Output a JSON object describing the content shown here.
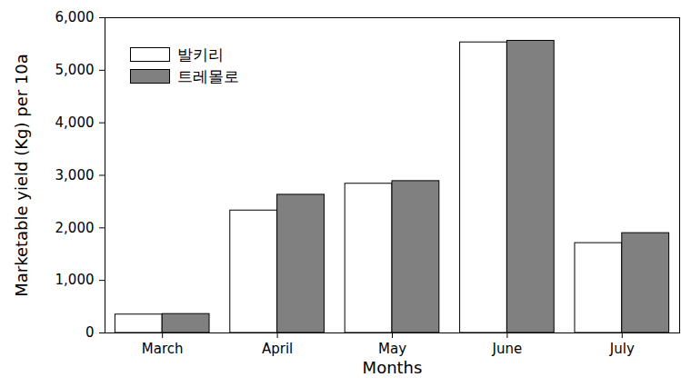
{
  "chart_data": {
    "type": "bar",
    "categories": [
      "March",
      "April",
      "May",
      "June",
      "July"
    ],
    "series": [
      {
        "name": "발키리",
        "color": "#ffffff",
        "values": [
          350,
          2330,
          2840,
          5530,
          1710
        ]
      },
      {
        "name": "트레몰로",
        "color": "#808080",
        "values": [
          360,
          2630,
          2890,
          5560,
          1900
        ]
      }
    ],
    "xlabel": "Months",
    "ylabel": "Marketable yield (Kg) per 10a",
    "ylim": [
      0,
      6000
    ],
    "yticks": [
      0,
      1000,
      2000,
      3000,
      4000,
      5000,
      6000
    ],
    "legend": "upper left",
    "grid": false
  }
}
